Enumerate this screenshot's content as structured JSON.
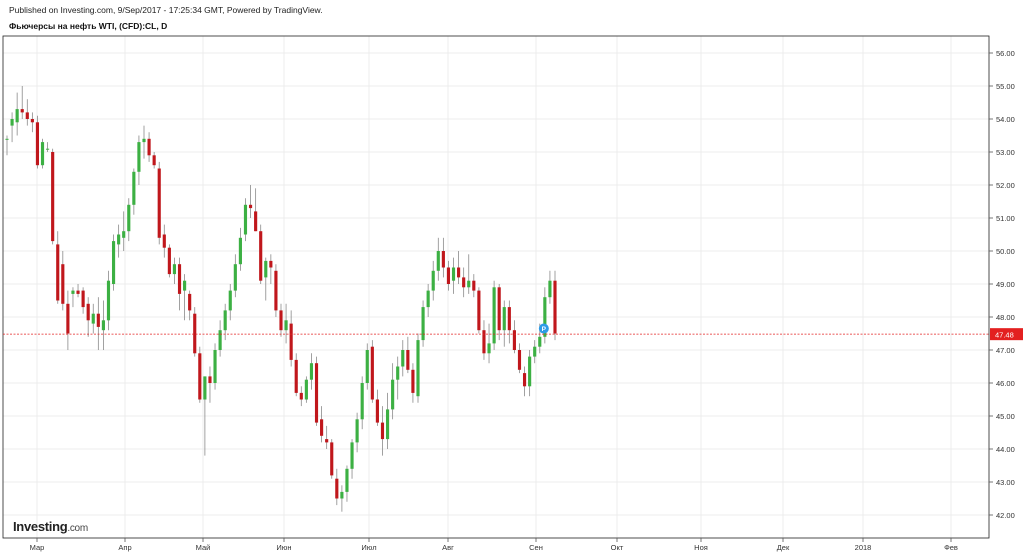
{
  "header": {
    "published": "Published on Investing.com, 9/Sep/2017 - 17:25:34 GMT, Powered by TradingView.",
    "title": "Фьючерсы на нефть WTI, (CFD):CL, D"
  },
  "logo": {
    "brand": "Investing",
    "domain": ".com"
  },
  "colors": {
    "up": "#3cb043",
    "down": "#c0171c",
    "price_line": "#e32020",
    "grid": "#ececec",
    "marker": "#2e9be6"
  },
  "chart_data": {
    "type": "candlestick",
    "title": "Фьючерсы на нефть WTI, (CFD):CL, D",
    "y_ticks": [
      "42.00",
      "43.00",
      "44.00",
      "45.00",
      "46.00",
      "47.00",
      "48.00",
      "49.00",
      "50.00",
      "51.00",
      "52.00",
      "53.00",
      "54.00",
      "55.00",
      "56.00"
    ],
    "ylim": [
      41.6,
      56.5
    ],
    "x_ticks": [
      "Мар",
      "Апр",
      "Май",
      "Июн",
      "Июл",
      "Авг",
      "Сен",
      "Окт",
      "Ноя",
      "Дек",
      "2018",
      "Фев"
    ],
    "last_price": "47.48",
    "marker_label": "P",
    "grid": true,
    "candles": [
      [
        53.4,
        53.5,
        52.9,
        53.4
      ],
      [
        53.8,
        54.2,
        53.3,
        54.0
      ],
      [
        53.9,
        54.8,
        53.5,
        54.3
      ],
      [
        54.3,
        55.0,
        54.0,
        54.2
      ],
      [
        54.2,
        54.6,
        53.8,
        54.0
      ],
      [
        54.0,
        54.2,
        53.6,
        53.9
      ],
      [
        53.9,
        54.1,
        52.5,
        52.6
      ],
      [
        52.6,
        53.4,
        52.5,
        53.3
      ],
      [
        53.1,
        53.3,
        53.0,
        53.1
      ],
      [
        53.0,
        53.1,
        50.2,
        50.3
      ],
      [
        50.2,
        50.6,
        48.4,
        48.5
      ],
      [
        49.6,
        50.0,
        48.2,
        48.4
      ],
      [
        48.4,
        48.8,
        47.0,
        47.5
      ],
      [
        48.7,
        48.9,
        48.3,
        48.8
      ],
      [
        48.8,
        49.0,
        48.6,
        48.7
      ],
      [
        48.8,
        48.9,
        48.1,
        48.3
      ],
      [
        48.4,
        48.6,
        47.4,
        47.9
      ],
      [
        47.8,
        48.4,
        47.5,
        48.1
      ],
      [
        48.1,
        48.6,
        47.0,
        47.7
      ],
      [
        47.6,
        48.5,
        47.0,
        47.9
      ],
      [
        47.9,
        49.4,
        47.6,
        49.1
      ],
      [
        49.0,
        50.5,
        48.8,
        50.3
      ],
      [
        50.2,
        50.8,
        49.8,
        50.5
      ],
      [
        50.4,
        51.2,
        50.0,
        50.6
      ],
      [
        50.6,
        51.6,
        50.3,
        51.4
      ],
      [
        51.4,
        52.5,
        51.1,
        52.4
      ],
      [
        52.4,
        53.5,
        52.0,
        53.3
      ],
      [
        53.3,
        53.8,
        52.8,
        53.4
      ],
      [
        53.4,
        53.6,
        52.7,
        52.9
      ],
      [
        52.9,
        53.0,
        52.5,
        52.6
      ],
      [
        52.5,
        52.7,
        50.2,
        50.4
      ],
      [
        50.5,
        50.8,
        49.8,
        50.1
      ],
      [
        50.1,
        50.2,
        49.2,
        49.3
      ],
      [
        49.3,
        49.8,
        49.0,
        49.6
      ],
      [
        49.6,
        49.8,
        48.2,
        48.7
      ],
      [
        48.8,
        49.3,
        47.9,
        49.1
      ],
      [
        48.7,
        48.8,
        47.9,
        48.2
      ],
      [
        48.1,
        48.3,
        46.8,
        46.9
      ],
      [
        46.9,
        47.1,
        45.4,
        45.5
      ],
      [
        45.5,
        46.2,
        43.8,
        46.2
      ],
      [
        46.2,
        46.5,
        45.4,
        46.0
      ],
      [
        46.0,
        47.2,
        45.8,
        47.0
      ],
      [
        47.0,
        47.9,
        46.8,
        47.6
      ],
      [
        47.6,
        48.4,
        47.3,
        48.2
      ],
      [
        48.2,
        49.0,
        47.9,
        48.8
      ],
      [
        48.8,
        49.9,
        48.6,
        49.6
      ],
      [
        49.6,
        50.7,
        49.4,
        50.4
      ],
      [
        50.5,
        51.6,
        50.3,
        51.4
      ],
      [
        51.4,
        52.0,
        51.0,
        51.3
      ],
      [
        51.2,
        51.9,
        50.6,
        50.6
      ],
      [
        50.6,
        50.8,
        49.0,
        49.1
      ],
      [
        49.2,
        49.8,
        48.5,
        49.7
      ],
      [
        49.7,
        49.9,
        49.0,
        49.5
      ],
      [
        49.4,
        49.6,
        48.0,
        48.2
      ],
      [
        48.2,
        48.4,
        47.4,
        47.6
      ],
      [
        47.6,
        48.4,
        47.2,
        47.9
      ],
      [
        47.8,
        48.2,
        46.5,
        46.7
      ],
      [
        46.7,
        46.9,
        45.6,
        45.7
      ],
      [
        45.7,
        45.9,
        45.3,
        45.5
      ],
      [
        45.5,
        46.2,
        45.4,
        46.1
      ],
      [
        46.1,
        46.9,
        45.8,
        46.6
      ],
      [
        46.6,
        46.8,
        44.7,
        44.8
      ],
      [
        44.9,
        45.3,
        44.2,
        44.4
      ],
      [
        44.3,
        44.7,
        44.0,
        44.2
      ],
      [
        44.2,
        44.3,
        43.1,
        43.2
      ],
      [
        43.1,
        43.4,
        42.3,
        42.5
      ],
      [
        42.5,
        42.9,
        42.1,
        42.7
      ],
      [
        42.7,
        43.5,
        42.4,
        43.4
      ],
      [
        43.4,
        44.3,
        43.1,
        44.2
      ],
      [
        44.2,
        45.1,
        43.9,
        44.9
      ],
      [
        44.9,
        46.2,
        44.6,
        46.0
      ],
      [
        46.0,
        47.2,
        45.8,
        47.0
      ],
      [
        47.1,
        47.3,
        45.4,
        45.5
      ],
      [
        45.5,
        45.8,
        44.7,
        44.8
      ],
      [
        44.8,
        45.3,
        43.8,
        44.3
      ],
      [
        44.3,
        45.7,
        44.0,
        45.2
      ],
      [
        45.2,
        46.6,
        44.9,
        46.1
      ],
      [
        46.1,
        46.8,
        45.5,
        46.5
      ],
      [
        46.5,
        47.3,
        46.2,
        47.0
      ],
      [
        47.0,
        47.4,
        46.3,
        46.4
      ],
      [
        46.4,
        46.6,
        45.4,
        45.7
      ],
      [
        45.6,
        47.5,
        45.4,
        47.3
      ],
      [
        47.3,
        48.5,
        47.1,
        48.3
      ],
      [
        48.3,
        49.0,
        48.0,
        48.8
      ],
      [
        48.8,
        49.7,
        48.5,
        49.4
      ],
      [
        49.4,
        50.4,
        49.1,
        50.0
      ],
      [
        50.0,
        50.4,
        49.2,
        49.5
      ],
      [
        49.5,
        49.7,
        48.8,
        49.0
      ],
      [
        49.1,
        49.8,
        48.7,
        49.5
      ],
      [
        49.5,
        50.0,
        49.0,
        49.2
      ],
      [
        49.2,
        49.5,
        48.6,
        48.9
      ],
      [
        48.9,
        49.9,
        48.7,
        49.1
      ],
      [
        49.1,
        49.3,
        48.6,
        48.8
      ],
      [
        48.8,
        48.9,
        47.5,
        47.6
      ],
      [
        47.6,
        47.9,
        46.7,
        46.9
      ],
      [
        46.9,
        47.8,
        46.6,
        47.2
      ],
      [
        47.2,
        49.1,
        47.0,
        48.9
      ],
      [
        48.9,
        49.0,
        47.3,
        47.6
      ],
      [
        47.6,
        48.5,
        47.1,
        48.3
      ],
      [
        48.3,
        48.5,
        47.2,
        47.6
      ],
      [
        47.6,
        47.9,
        46.9,
        47.0
      ],
      [
        47.0,
        47.2,
        46.3,
        46.4
      ],
      [
        46.3,
        46.5,
        45.6,
        45.9
      ],
      [
        45.9,
        47.0,
        45.6,
        46.8
      ],
      [
        46.8,
        47.3,
        46.6,
        47.1
      ],
      [
        47.1,
        47.8,
        46.9,
        47.4
      ],
      [
        47.4,
        48.9,
        47.2,
        48.6
      ],
      [
        48.6,
        49.4,
        48.4,
        49.1
      ],
      [
        49.1,
        49.4,
        47.3,
        47.5
      ]
    ]
  }
}
